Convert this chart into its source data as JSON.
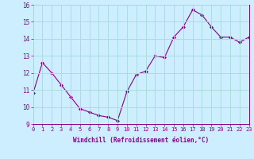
{
  "x": [
    0,
    1,
    2,
    3,
    4,
    5,
    6,
    7,
    8,
    9,
    10,
    11,
    12,
    13,
    14,
    15,
    16,
    17,
    18,
    19,
    20,
    21,
    22,
    23
  ],
  "y": [
    10.8,
    12.6,
    12.0,
    11.3,
    10.6,
    9.9,
    9.7,
    9.5,
    9.4,
    9.2,
    10.9,
    11.9,
    12.1,
    13.0,
    12.9,
    14.1,
    14.7,
    15.7,
    15.4,
    14.7,
    14.1,
    14.1,
    13.8,
    14.1
  ],
  "line_color": "#880088",
  "marker_color": "#880088",
  "bg_color": "#cceeff",
  "grid_color": "#aadddd",
  "xlabel": "Windchill (Refroidissement éolien,°C)",
  "tick_color": "#880088",
  "ylim": [
    9,
    16
  ],
  "xlim": [
    0,
    23
  ],
  "yticks": [
    9,
    10,
    11,
    12,
    13,
    14,
    15,
    16
  ],
  "xticks": [
    0,
    1,
    2,
    3,
    4,
    5,
    6,
    7,
    8,
    9,
    10,
    11,
    12,
    13,
    14,
    15,
    16,
    17,
    18,
    19,
    20,
    21,
    22,
    23
  ],
  "xtick_labels": [
    "0",
    "1",
    "2",
    "3",
    "4",
    "5",
    "6",
    "7",
    "8",
    "9",
    "10",
    "11",
    "12",
    "13",
    "14",
    "15",
    "16",
    "17",
    "18",
    "19",
    "20",
    "21",
    "22",
    "23"
  ]
}
